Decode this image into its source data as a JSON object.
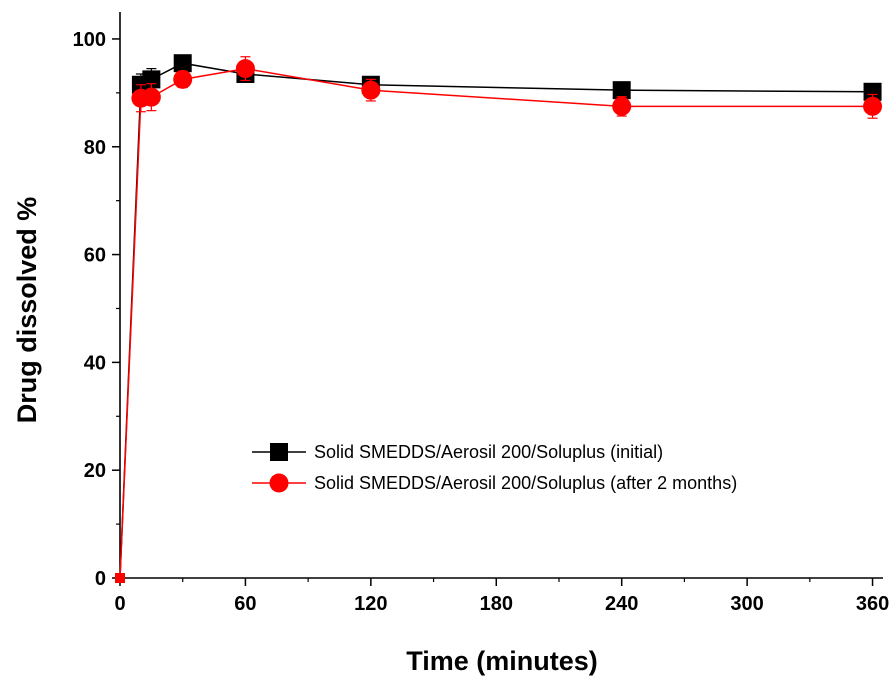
{
  "chart_data": {
    "type": "line",
    "title": "",
    "xlabel": "Time (minutes)",
    "ylabel": "Drug dissolved %",
    "xlim": [
      0,
      365
    ],
    "ylim": [
      0,
      105
    ],
    "xticks": [
      0,
      60,
      120,
      180,
      240,
      300,
      360
    ],
    "yticks": [
      0,
      20,
      40,
      60,
      80,
      100
    ],
    "xtick_labels": [
      "0",
      "60",
      "120",
      "180",
      "240",
      "300",
      "360"
    ],
    "ytick_labels": [
      "0",
      "20",
      "40",
      "60",
      "80",
      "100"
    ],
    "grid": false,
    "legend_position": "lower-right",
    "series": [
      {
        "name": "Solid SMEDDS/Aerosil 200/Soluplus (initial)",
        "color": "#000000",
        "marker": "square",
        "x": [
          0,
          10,
          15,
          30,
          60,
          120,
          240,
          360
        ],
        "y": [
          0,
          91.5,
          92.5,
          95.5,
          93.5,
          91.5,
          90.5,
          90.2
        ],
        "error": [
          0,
          2.0,
          2.0,
          1.2,
          1.5,
          1.2,
          1.0,
          1.5
        ]
      },
      {
        "name": "Solid SMEDDS/Aerosil 200/Soluplus (after 2 months)",
        "color": "#ff0000",
        "marker": "circle",
        "x": [
          0,
          10,
          15,
          30,
          60,
          120,
          240,
          360
        ],
        "y": [
          0,
          89.0,
          89.2,
          92.5,
          94.5,
          90.5,
          87.5,
          87.5
        ],
        "error": [
          0,
          2.5,
          2.5,
          1.5,
          2.2,
          2.0,
          1.8,
          2.2
        ]
      }
    ]
  }
}
